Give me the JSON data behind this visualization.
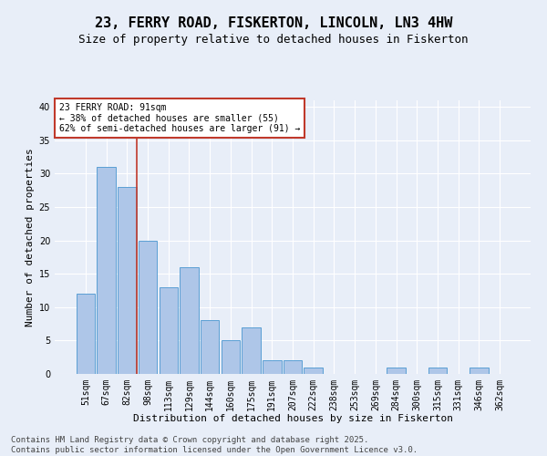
{
  "title": "23, FERRY ROAD, FISKERTON, LINCOLN, LN3 4HW",
  "subtitle": "Size of property relative to detached houses in Fiskerton",
  "xlabel": "Distribution of detached houses by size in Fiskerton",
  "ylabel": "Number of detached properties",
  "categories": [
    "51sqm",
    "67sqm",
    "82sqm",
    "98sqm",
    "113sqm",
    "129sqm",
    "144sqm",
    "160sqm",
    "175sqm",
    "191sqm",
    "207sqm",
    "222sqm",
    "238sqm",
    "253sqm",
    "269sqm",
    "284sqm",
    "300sqm",
    "315sqm",
    "331sqm",
    "346sqm",
    "362sqm"
  ],
  "values": [
    12,
    31,
    28,
    20,
    13,
    16,
    8,
    5,
    7,
    2,
    2,
    1,
    0,
    0,
    0,
    1,
    0,
    1,
    0,
    1,
    0
  ],
  "bar_color": "#aec6e8",
  "bar_edge_color": "#5a9fd4",
  "background_color": "#e8eef8",
  "vline_x_index": 2,
  "vline_color": "#c0392b",
  "annotation_text": "23 FERRY ROAD: 91sqm\n← 38% of detached houses are smaller (55)\n62% of semi-detached houses are larger (91) →",
  "annotation_box_color": "#ffffff",
  "annotation_box_edge": "#c0392b",
  "ylim": [
    0,
    41
  ],
  "yticks": [
    0,
    5,
    10,
    15,
    20,
    25,
    30,
    35,
    40
  ],
  "footer": "Contains HM Land Registry data © Crown copyright and database right 2025.\nContains public sector information licensed under the Open Government Licence v3.0.",
  "title_fontsize": 11,
  "subtitle_fontsize": 9,
  "xlabel_fontsize": 8,
  "ylabel_fontsize": 8,
  "tick_fontsize": 7,
  "annotation_fontsize": 7,
  "footer_fontsize": 6.5
}
